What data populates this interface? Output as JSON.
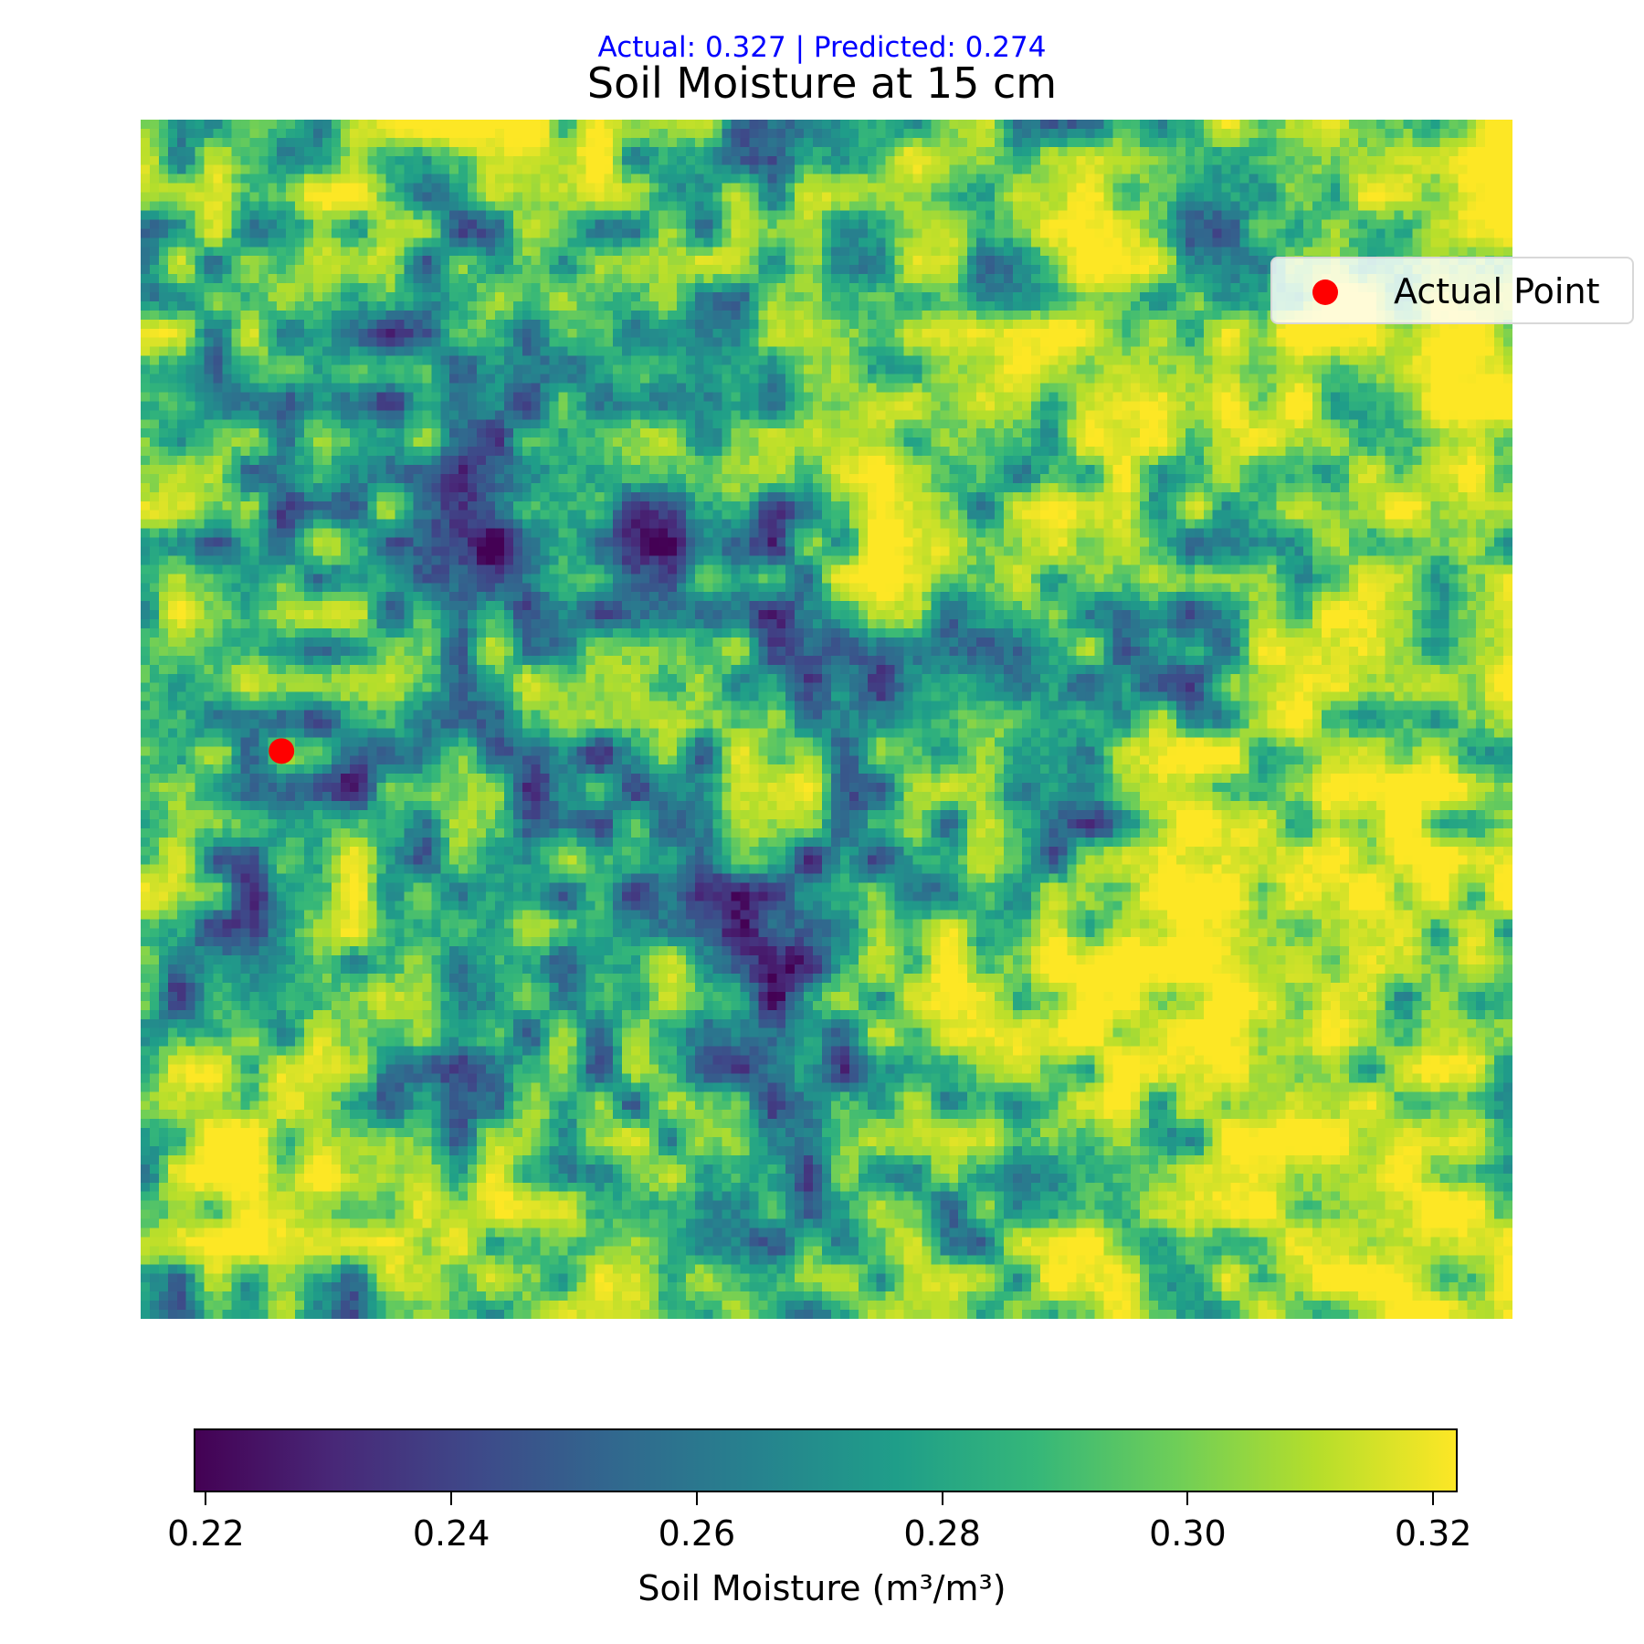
{
  "chart_data": {
    "type": "heatmap",
    "title": "Soil Moisture at 15 cm",
    "subtitle": "Actual: 0.327 | Predicted: 0.274",
    "xlabel": "",
    "ylabel": "",
    "axes_visible": false,
    "grid": false,
    "grid_shape": [
      132,
      151
    ],
    "colormap": "viridis",
    "vmin": 0.219,
    "vmax": 0.322,
    "colorbar": {
      "orientation": "horizontal",
      "label": "Soil Moisture (m³/m³)",
      "ticks": [
        0.22,
        0.24,
        0.26,
        0.28,
        0.3,
        0.32
      ],
      "tick_labels": [
        "0.22",
        "0.24",
        "0.26",
        "0.28",
        "0.30",
        "0.32"
      ]
    },
    "legend": {
      "placement": "upper right",
      "entries": [
        {
          "label": "Actual Point",
          "marker": "circle",
          "color": "#ff0000"
        }
      ]
    },
    "marked_point": {
      "label": "Actual Point",
      "col": 15,
      "row": 69,
      "actual_value": 0.327,
      "predicted_value": 0.274
    }
  },
  "colors": {
    "viridis_stops": [
      "#440154",
      "#482878",
      "#3e4989",
      "#31688e",
      "#26828e",
      "#1f9e89",
      "#35b779",
      "#6ece58",
      "#b5de2b",
      "#fde725"
    ],
    "subtitle_color": "#0000ff",
    "marker_color": "#ff0000"
  }
}
